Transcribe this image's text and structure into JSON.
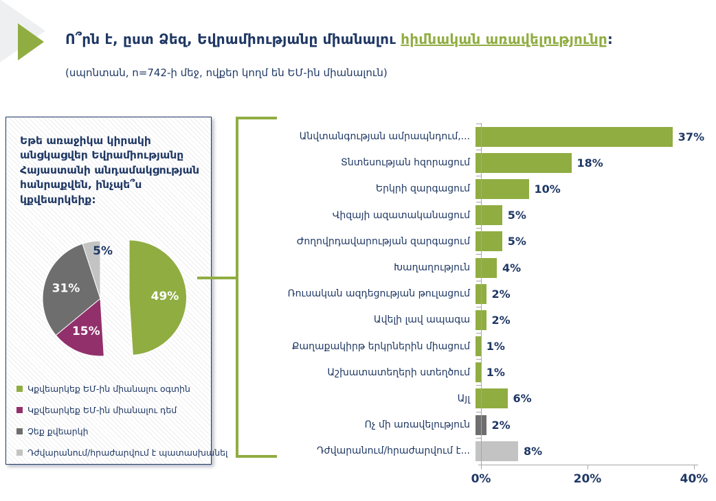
{
  "header": {
    "title_prefix": "Ո՞րն է, ըստ Ձեզ, Եվրամիությանը միանալու ",
    "title_highlight": "հիմնական առավելությունը",
    "title_suffix": ":",
    "subtitle": "(սպոնտան, n=742-ի մեջ, ովքեր կողմ են ԵՄ-ին միանալուն)"
  },
  "panel": {
    "question": "Եթե առաջիկա կիրակի անցկացվեր Եվրամիությանը Հայաստանի անդամակցության հանրաքվեն, ինչպե՞ս կքվեարկեիք:"
  },
  "colors": {
    "navy_text": "#1F3864",
    "green": "#90AD42",
    "purple": "#92306C",
    "dark_gray": "#6E6E6E",
    "light_gray": "#C3C3C3",
    "axis_gray": "#A6A6A6"
  },
  "chart_data": [
    {
      "type": "pie",
      "labels": [
        "Կքվեարկեք ԵՄ-ին միանալու օգտին",
        "Կքվեարկեք ԵՄ-ին միանալու դեմ",
        "Չեք քվեարկի",
        "Դժվարանում/հրաժարվում է պատասխանել"
      ],
      "values": [
        49,
        15,
        31,
        5
      ],
      "value_labels": [
        "49%",
        "15%",
        "31%",
        "5%"
      ],
      "colors": [
        "#90AD42",
        "#92306C",
        "#6E6E6E",
        "#C3C3C3"
      ],
      "exploded_slice": 0,
      "label_inside": [
        true,
        true,
        true,
        false
      ],
      "legend_position": "bottom-left"
    },
    {
      "type": "bar",
      "orientation": "horizontal",
      "categories": [
        "Անվտանգության ամրապնդում,...",
        "Տնտեսության հզորացում",
        "Երկրի զարգացում",
        "Վիզայի ազատականացում",
        "Ժողովրդավարության զարգացում",
        "Խաղաղություն",
        "Ռուսական ազդեցության թուլացում",
        "Ավելի լավ ապագա",
        "Քաղաքակիրթ երկրներին միացում",
        "Աշխատատեղերի ստեղծում",
        "Այլ",
        "Ոչ մի առավելություն",
        "Դժվարանում/հրաժարվում է..."
      ],
      "values": [
        37,
        18,
        10,
        5,
        5,
        4,
        2,
        2,
        1,
        1,
        6,
        2,
        8
      ],
      "value_labels": [
        "37%",
        "18%",
        "10%",
        "5%",
        "5%",
        "4%",
        "2%",
        "2%",
        "1%",
        "1%",
        "6%",
        "2%",
        "8%"
      ],
      "bar_colors": [
        "#90AD42",
        "#90AD42",
        "#90AD42",
        "#90AD42",
        "#90AD42",
        "#90AD42",
        "#90AD42",
        "#90AD42",
        "#90AD42",
        "#90AD42",
        "#90AD42",
        "#6E6E6E",
        "#C3C3C3"
      ],
      "xlim": [
        0,
        40
      ],
      "x_ticks": [
        {
          "value": 0,
          "label": "0%"
        },
        {
          "value": 20,
          "label": "20%"
        },
        {
          "value": 40,
          "label": "40%"
        }
      ],
      "grid": false
    }
  ]
}
